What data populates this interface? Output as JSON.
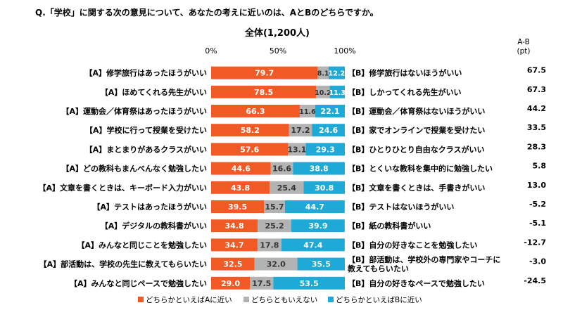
{
  "question": "Q.「学校」に関する次の意見について、あなたの考えに近いのは、AとBのどちらですか。",
  "subtitle": "全体(1,200人)",
  "diff_header": [
    "A-B",
    "(pt)"
  ],
  "colors": {
    "A": "#f15a24",
    "neutral": "#b3b3b3",
    "B": "#1ea9d6"
  },
  "chart_data": {
    "type": "bar",
    "orientation": "horizontal",
    "stacked": true,
    "xlim": [
      0,
      100
    ],
    "x_ticks": [
      "0%",
      "50%",
      "100%"
    ],
    "grid": false,
    "legend_position": "bottom",
    "series": [
      {
        "name": "どちらかといえばAに近い",
        "color_key": "A",
        "values": [
          79.7,
          78.5,
          66.3,
          58.2,
          57.6,
          44.6,
          43.8,
          39.5,
          34.8,
          34.7,
          32.5,
          29.0
        ],
        "labels": [
          "79.7",
          "78.5",
          "66.3",
          "58.2",
          "57.6",
          "44.6",
          "43.8",
          "39.5",
          "34.8",
          "34.7",
          "32.5",
          "29.0"
        ]
      },
      {
        "name": "どちらともいえない",
        "color_key": "neutral",
        "values": [
          8.1,
          10.2,
          11.6,
          17.2,
          13.1,
          16.6,
          25.4,
          15.7,
          25.2,
          17.8,
          32.0,
          17.5
        ],
        "labels": [
          "8.1",
          "10.2",
          "11.6",
          "17.2",
          "13.1",
          "16.6",
          "25.4",
          "15.7",
          "25.2",
          "17.8",
          "32.0",
          "17.5"
        ]
      },
      {
        "name": "どちらかといえばBに近い",
        "color_key": "B",
        "values": [
          12.2,
          11.3,
          22.1,
          24.6,
          29.3,
          38.8,
          30.8,
          44.7,
          39.9,
          47.4,
          35.5,
          53.5
        ],
        "labels": [
          "12.2",
          "11.3",
          "22.1",
          "24.6",
          "29.3",
          "38.8",
          "30.8",
          "44.7",
          "39.9",
          "47.4",
          "35.5",
          "53.5"
        ]
      }
    ],
    "a_labels": [
      "【A】修学旅行はあったほうがいい",
      "【A】ほめてくれる先生がいい",
      "【A】運動会／体育祭はあったほうがいい",
      "【A】学校に行って授業を受けたい",
      "【A】まとまりがあるクラスがいい",
      "【A】どの教科もまんべんなく勉強したい",
      "【A】文章を書くときは、キーボード入力がいい",
      "【A】テストはあったほうがいい",
      "【A】デジタルの教科書がいい",
      "【A】みんなと同じことを勉強したい",
      "【A】部活動は、学校の先生に教えてもらいたい",
      "【A】みんなと同じペースで勉強したい"
    ],
    "b_labels": [
      [
        "【B】修学旅行はないほうがいい"
      ],
      [
        "【B】しかってくれる先生がいい"
      ],
      [
        "【B】運動会／体育祭はないほうがいい"
      ],
      [
        "【B】家でオンラインで授業を受けたい"
      ],
      [
        "【B】ひとりひとり自由なクラスがいい"
      ],
      [
        "【B】とくいな教科を集中的に勉強したい"
      ],
      [
        "【B】文章を書くときは、手書きがいい"
      ],
      [
        "【B】テストはないほうがいい"
      ],
      [
        "【B】紙の教科書がいい"
      ],
      [
        "【B】自分の好きなことを勉強したい"
      ],
      [
        "【B】部活動は、学校外の専門家やコーチに",
        "教えてもらいたい"
      ],
      [
        "【B】自分の好きなペースで勉強したい"
      ]
    ],
    "diff": [
      "67.5",
      "67.3",
      "44.2",
      "33.5",
      "28.3",
      "5.8",
      "13.0",
      "-5.2",
      "-5.1",
      "-12.7",
      "-3.0",
      "-24.5"
    ]
  }
}
